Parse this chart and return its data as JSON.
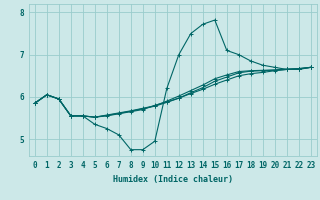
{
  "xlabel": "Humidex (Indice chaleur)",
  "bg_color": "#cce8e8",
  "grid_color": "#99cccc",
  "line_color": "#006666",
  "xlim": [
    -0.5,
    23.5
  ],
  "ylim": [
    4.6,
    8.2
  ],
  "yticks": [
    5,
    6,
    7,
    8
  ],
  "xticks": [
    0,
    1,
    2,
    3,
    4,
    5,
    6,
    7,
    8,
    9,
    10,
    11,
    12,
    13,
    14,
    15,
    16,
    17,
    18,
    19,
    20,
    21,
    22,
    23
  ],
  "lines": [
    {
      "x": [
        0,
        1,
        2,
        3,
        4,
        5,
        6,
        7,
        8,
        9,
        10,
        11,
        12,
        13,
        14,
        15,
        16,
        17,
        18,
        19,
        20,
        21,
        22,
        23
      ],
      "y": [
        5.85,
        6.05,
        5.95,
        5.55,
        5.55,
        5.35,
        5.25,
        5.1,
        4.75,
        4.75,
        4.95,
        6.2,
        7.0,
        7.5,
        7.72,
        7.82,
        7.1,
        7.0,
        6.85,
        6.75,
        6.7,
        6.65,
        6.65,
        6.7
      ]
    },
    {
      "x": [
        0,
        1,
        2,
        3,
        4,
        5,
        6,
        7,
        8,
        9,
        10,
        11,
        12,
        13,
        14,
        15,
        16,
        17,
        18,
        19,
        20,
        21,
        22,
        23
      ],
      "y": [
        5.85,
        6.05,
        5.95,
        5.55,
        5.55,
        5.52,
        5.55,
        5.6,
        5.65,
        5.7,
        5.8,
        5.88,
        5.97,
        6.08,
        6.18,
        6.3,
        6.4,
        6.5,
        6.55,
        6.58,
        6.62,
        6.65,
        6.67,
        6.7
      ]
    },
    {
      "x": [
        0,
        1,
        2,
        3,
        4,
        5,
        6,
        7,
        8,
        9,
        10,
        11,
        12,
        13,
        14,
        15,
        16,
        17,
        18,
        19,
        20,
        21,
        22,
        23
      ],
      "y": [
        5.85,
        6.05,
        5.95,
        5.55,
        5.55,
        5.52,
        5.56,
        5.61,
        5.66,
        5.72,
        5.78,
        5.87,
        5.97,
        6.1,
        6.22,
        6.37,
        6.47,
        6.57,
        6.61,
        6.62,
        6.63,
        6.65,
        6.66,
        6.7
      ]
    },
    {
      "x": [
        0,
        1,
        2,
        3,
        4,
        5,
        6,
        7,
        8,
        9,
        10,
        11,
        12,
        13,
        14,
        15,
        16,
        17,
        18,
        19,
        20,
        21,
        22,
        23
      ],
      "y": [
        5.85,
        6.05,
        5.95,
        5.55,
        5.55,
        5.52,
        5.57,
        5.62,
        5.67,
        5.73,
        5.79,
        5.9,
        6.02,
        6.15,
        6.28,
        6.43,
        6.52,
        6.6,
        6.62,
        6.63,
        6.64,
        6.66,
        6.67,
        6.7
      ]
    }
  ]
}
